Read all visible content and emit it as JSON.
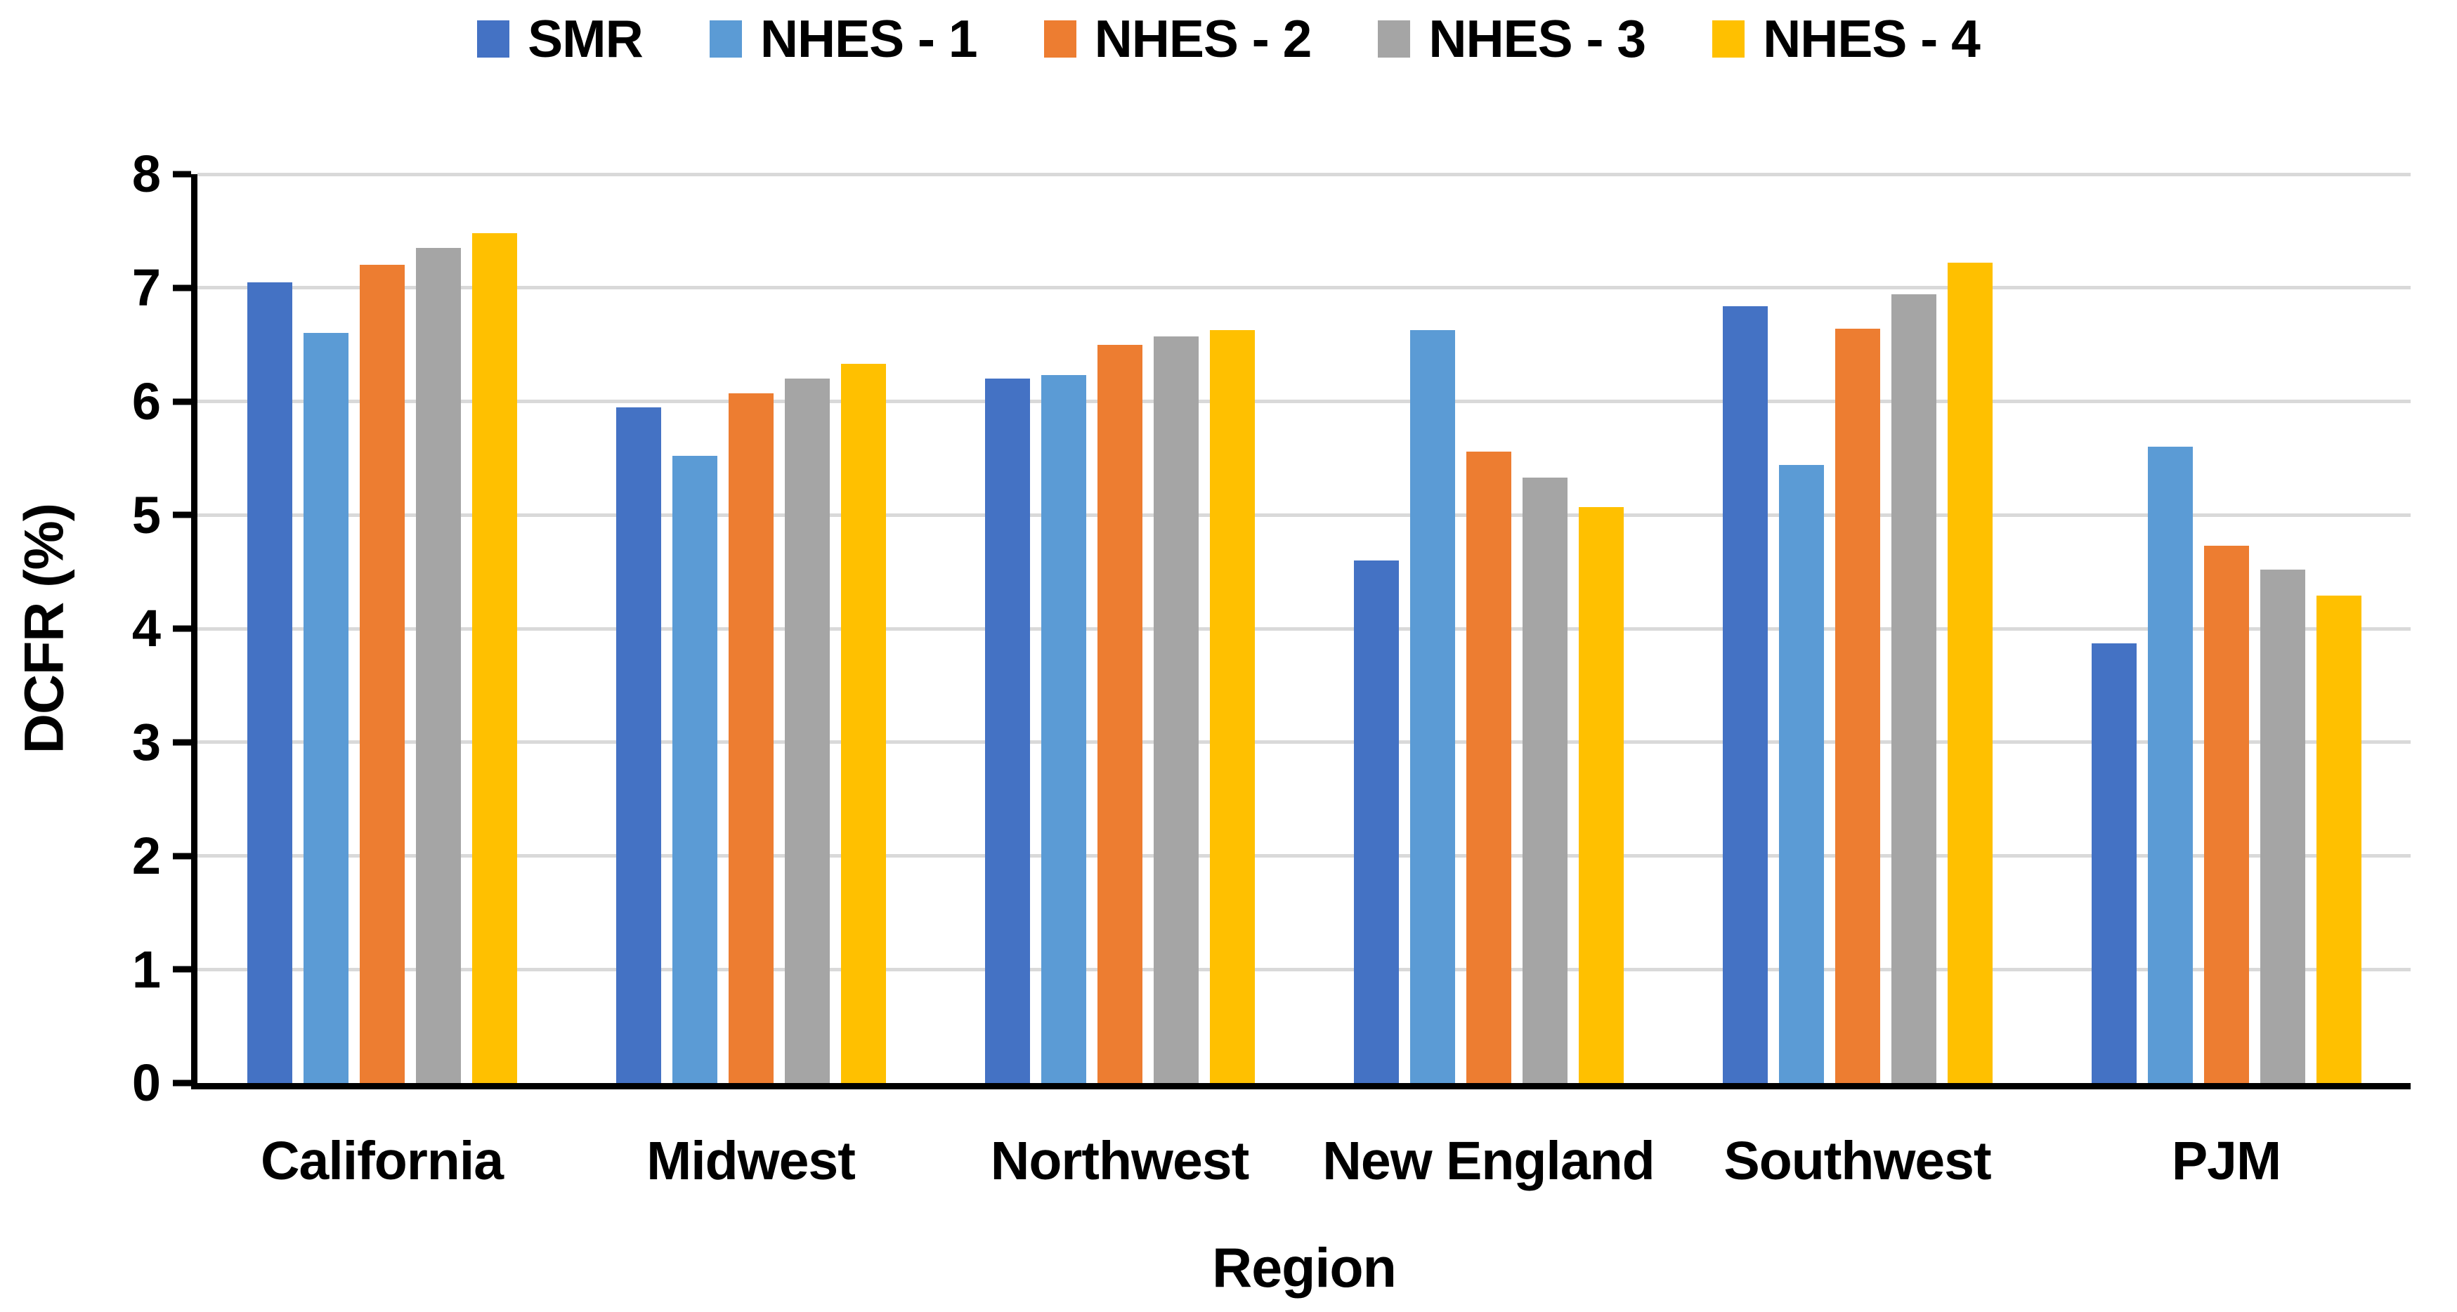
{
  "chart_data": {
    "type": "bar",
    "title": "",
    "xlabel": "Region",
    "ylabel": "DCFR (%)",
    "ylim": [
      0,
      8
    ],
    "yticks": [
      0,
      1,
      2,
      3,
      4,
      5,
      6,
      7,
      8
    ],
    "grid": true,
    "legend_position": "top",
    "categories": [
      "California",
      "Midwest",
      "Northwest",
      "New England",
      "Southwest",
      "PJM"
    ],
    "series": [
      {
        "name": "SMR",
        "color": "#4472C4",
        "values": [
          7.05,
          5.95,
          6.2,
          4.6,
          6.84,
          3.87
        ]
      },
      {
        "name": "NHES - 1",
        "color": "#5B9BD5",
        "values": [
          6.6,
          5.52,
          6.23,
          6.63,
          5.44,
          5.6
        ]
      },
      {
        "name": "NHES - 2",
        "color": "#ED7D31",
        "values": [
          7.2,
          6.07,
          6.5,
          5.56,
          6.64,
          4.73
        ]
      },
      {
        "name": "NHES - 3",
        "color": "#A5A5A5",
        "values": [
          7.35,
          6.2,
          6.57,
          5.33,
          6.94,
          4.52
        ]
      },
      {
        "name": "NHES - 4",
        "color": "#FFC000",
        "values": [
          7.48,
          6.33,
          6.63,
          5.07,
          7.22,
          4.29
        ]
      }
    ],
    "colors": {
      "gridline": "#D9D9D9",
      "axis": "#000000",
      "text": "#000000",
      "background": "#FFFFFF"
    }
  }
}
